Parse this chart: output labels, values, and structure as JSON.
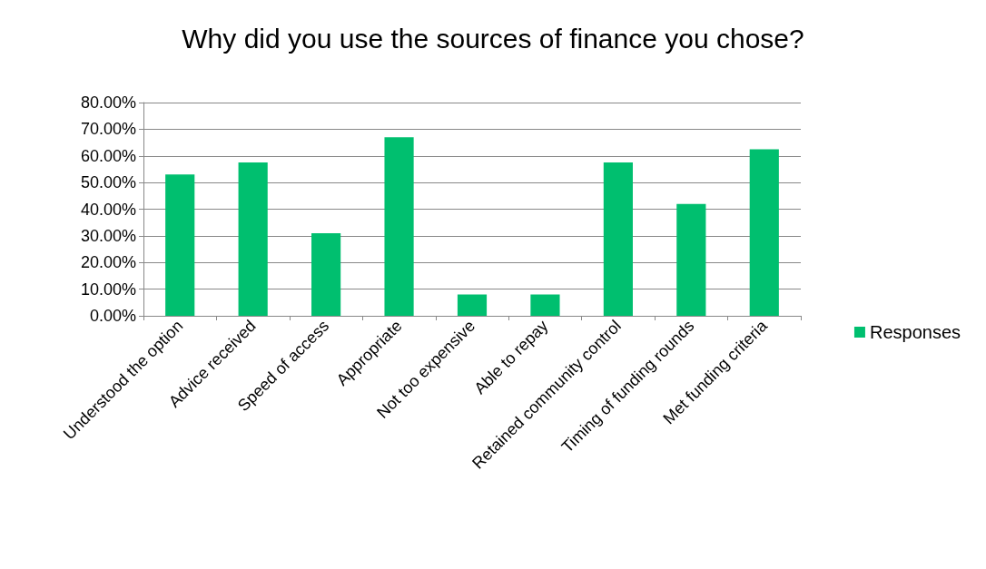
{
  "chart_data": {
    "type": "bar",
    "title": "Why did you use the sources of finance you chose?",
    "categories": [
      "Understood the option",
      "Advice received",
      "Speed of access",
      "Appropriate",
      "Not too expensive",
      "Able to repay",
      "Retained community control",
      "Timing of funding rounds",
      "Met funding criteria"
    ],
    "series": [
      {
        "name": "Responses",
        "color": "#00bf6f",
        "values": [
          53,
          57.5,
          31,
          67,
          8,
          8,
          57.5,
          42,
          62.5
        ]
      }
    ],
    "ylim": [
      0,
      80
    ],
    "yticks": [
      {
        "value": 0,
        "label": "0.00%"
      },
      {
        "value": 10,
        "label": "10.00%"
      },
      {
        "value": 20,
        "label": "20.00%"
      },
      {
        "value": 30,
        "label": "30.00%"
      },
      {
        "value": 40,
        "label": "40.00%"
      },
      {
        "value": 50,
        "label": "50.00%"
      },
      {
        "value": 60,
        "label": "60.00%"
      },
      {
        "value": 70,
        "label": "70.00%"
      },
      {
        "value": 80,
        "label": "80.00%"
      }
    ],
    "grid": "y",
    "legend": "right"
  }
}
